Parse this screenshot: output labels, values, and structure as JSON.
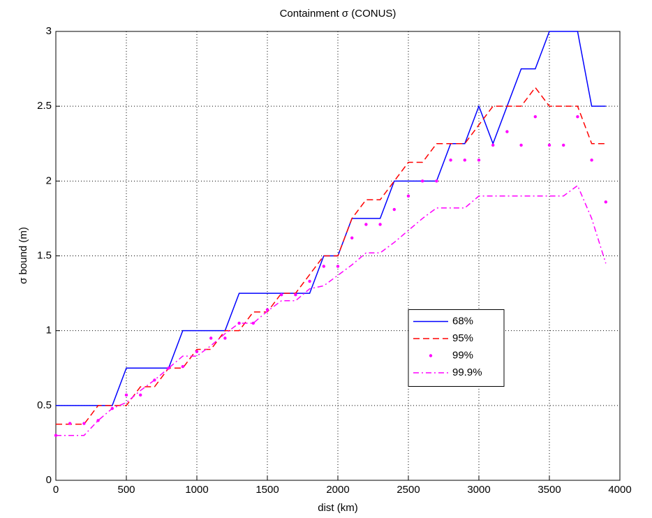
{
  "chart_data": {
    "type": "line",
    "title": "Containment σ (CONUS)",
    "x_label": "dist (km)",
    "y_label": "σ bound (m)",
    "x": [
      0,
      100,
      200,
      300,
      400,
      500,
      600,
      700,
      800,
      900,
      1000,
      1100,
      1200,
      1300,
      1400,
      1500,
      1600,
      1700,
      1800,
      1900,
      2000,
      2100,
      2200,
      2300,
      2400,
      2500,
      2600,
      2700,
      2800,
      2900,
      3000,
      3100,
      3200,
      3300,
      3400,
      3500,
      3600,
      3700,
      3800,
      3900
    ],
    "series": [
      {
        "name": "68%",
        "color": "#0000ff",
        "style": "solid",
        "values": [
          0.5,
          0.5,
          0.5,
          0.5,
          0.5,
          0.75,
          0.75,
          0.75,
          0.75,
          1.0,
          1.0,
          1.0,
          1.0,
          1.25,
          1.25,
          1.25,
          1.25,
          1.25,
          1.25,
          1.5,
          1.5,
          1.75,
          1.75,
          1.75,
          2.0,
          2.0,
          2.0,
          2.0,
          2.25,
          2.25,
          2.5,
          2.25,
          2.5,
          2.75,
          2.75,
          3.0,
          3.0,
          3.0,
          2.5,
          2.5
        ]
      },
      {
        "name": "95%",
        "color": "#ff0000",
        "style": "dashed",
        "values": [
          0.375,
          0.375,
          0.375,
          0.5,
          0.5,
          0.5,
          0.625,
          0.625,
          0.75,
          0.75,
          0.875,
          0.875,
          1.0,
          1.0,
          1.125,
          1.125,
          1.25,
          1.25,
          1.375,
          1.5,
          1.5,
          1.75,
          1.875,
          1.875,
          2.0,
          2.125,
          2.125,
          2.25,
          2.25,
          2.25,
          2.375,
          2.5,
          2.5,
          2.5,
          2.625,
          2.5,
          2.5,
          2.5,
          2.25,
          2.25
        ]
      },
      {
        "name": "99%",
        "color": "#ff00ff",
        "style": "markers",
        "values": [
          0.3,
          0.38,
          0.38,
          0.4,
          0.48,
          0.57,
          0.57,
          0.67,
          0.75,
          0.76,
          0.86,
          0.95,
          0.95,
          1.05,
          1.05,
          1.14,
          1.24,
          1.24,
          1.33,
          1.43,
          1.43,
          1.62,
          1.71,
          1.71,
          1.81,
          1.9,
          2.0,
          2.0,
          2.14,
          2.14,
          2.14,
          2.24,
          2.33,
          2.24,
          2.43,
          2.24,
          2.24,
          2.43,
          2.14,
          1.86
        ]
      },
      {
        "name": "99.9%",
        "color": "#ff00ff",
        "style": "dashdot",
        "values": [
          0.3,
          0.3,
          0.3,
          0.4,
          0.48,
          0.52,
          0.6,
          0.67,
          0.75,
          0.83,
          0.83,
          0.9,
          0.98,
          1.05,
          1.05,
          1.13,
          1.2,
          1.2,
          1.28,
          1.3,
          1.37,
          1.44,
          1.52,
          1.52,
          1.59,
          1.67,
          1.75,
          1.82,
          1.82,
          1.82,
          1.9,
          1.9,
          1.9,
          1.9,
          1.9,
          1.9,
          1.9,
          1.97,
          1.75,
          1.45
        ]
      }
    ],
    "xlim": [
      0,
      4000
    ],
    "xticks": [
      0,
      500,
      1000,
      1500,
      2000,
      2500,
      3000,
      3500,
      4000
    ],
    "ylim": [
      0,
      3
    ],
    "yticks": [
      0,
      0.5,
      1,
      1.5,
      2,
      2.5,
      3
    ],
    "grid": true,
    "legend": "center right"
  }
}
